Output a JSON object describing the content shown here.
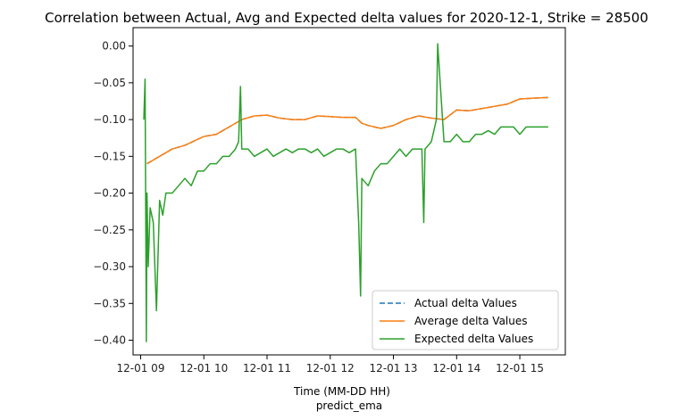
{
  "chart_data": {
    "type": "line",
    "title": "Correlation between Actual, Avg and Expected delta values for 2020-12-1, Strike = 28500",
    "xlabel": "Time (MM-DD HH)",
    "sublabel": "predict_ema",
    "ylabel": "",
    "xlim_hours": [
      8.88,
      15.72
    ],
    "ylim": [
      -0.42,
      0.025
    ],
    "x_ticks": [
      {
        "value": 9,
        "label": "12-01 09"
      },
      {
        "value": 10,
        "label": "12-01 10"
      },
      {
        "value": 11,
        "label": "12-01 11"
      },
      {
        "value": 12,
        "label": "12-01 12"
      },
      {
        "value": 13,
        "label": "12-01 13"
      },
      {
        "value": 14,
        "label": "12-01 14"
      },
      {
        "value": 15,
        "label": "12-01 15"
      }
    ],
    "y_ticks": [
      {
        "value": 0.0,
        "label": "0.00"
      },
      {
        "value": -0.05,
        "label": "−0.05"
      },
      {
        "value": -0.1,
        "label": "−0.10"
      },
      {
        "value": -0.15,
        "label": "−0.15"
      },
      {
        "value": -0.2,
        "label": "−0.20"
      },
      {
        "value": -0.25,
        "label": "−0.25"
      },
      {
        "value": -0.3,
        "label": "−0.30"
      },
      {
        "value": -0.35,
        "label": "−0.35"
      },
      {
        "value": -0.4,
        "label": "−0.40"
      }
    ],
    "grid": false,
    "legend_position": "lower-right",
    "series": [
      {
        "name": "Actual delta Values",
        "color": "#1f77b4",
        "dash": "dashed",
        "x": [
          9.1,
          9.2,
          9.3,
          9.5,
          9.7,
          9.9,
          10.0,
          10.2,
          10.4,
          10.6,
          10.8,
          11.0,
          11.2,
          11.4,
          11.6,
          11.8,
          12.0,
          12.2,
          12.4,
          12.5,
          12.6,
          12.8,
          13.0,
          13.2,
          13.4,
          13.6,
          13.8,
          14.0,
          14.2,
          14.4,
          14.6,
          14.8,
          15.0,
          15.2,
          15.45
        ],
        "y": [
          -0.16,
          -0.155,
          -0.15,
          -0.14,
          -0.135,
          -0.127,
          -0.123,
          -0.12,
          -0.11,
          -0.1,
          -0.095,
          -0.094,
          -0.098,
          -0.1,
          -0.1,
          -0.095,
          -0.096,
          -0.097,
          -0.097,
          -0.105,
          -0.108,
          -0.112,
          -0.108,
          -0.1,
          -0.095,
          -0.098,
          -0.1,
          -0.087,
          -0.088,
          -0.085,
          -0.082,
          -0.079,
          -0.072,
          -0.071,
          -0.07
        ]
      },
      {
        "name": "Average delta Values",
        "color": "#ff7f0e",
        "dash": "solid",
        "x": [
          9.1,
          9.2,
          9.3,
          9.5,
          9.7,
          9.9,
          10.0,
          10.2,
          10.4,
          10.6,
          10.8,
          11.0,
          11.2,
          11.4,
          11.6,
          11.8,
          12.0,
          12.2,
          12.4,
          12.5,
          12.6,
          12.8,
          13.0,
          13.2,
          13.4,
          13.6,
          13.8,
          14.0,
          14.2,
          14.4,
          14.6,
          14.8,
          15.0,
          15.2,
          15.45
        ],
        "y": [
          -0.16,
          -0.155,
          -0.15,
          -0.14,
          -0.135,
          -0.127,
          -0.123,
          -0.12,
          -0.11,
          -0.1,
          -0.095,
          -0.094,
          -0.098,
          -0.1,
          -0.1,
          -0.095,
          -0.096,
          -0.097,
          -0.097,
          -0.105,
          -0.108,
          -0.112,
          -0.108,
          -0.1,
          -0.095,
          -0.098,
          -0.1,
          -0.087,
          -0.088,
          -0.085,
          -0.082,
          -0.079,
          -0.072,
          -0.071,
          -0.07
        ]
      },
      {
        "name": "Expected delta Values",
        "color": "#2ca02c",
        "dash": "solid",
        "x": [
          9.05,
          9.07,
          9.09,
          9.1,
          9.12,
          9.15,
          9.2,
          9.25,
          9.3,
          9.35,
          9.4,
          9.5,
          9.6,
          9.7,
          9.8,
          9.9,
          10.0,
          10.1,
          10.2,
          10.3,
          10.4,
          10.5,
          10.55,
          10.58,
          10.6,
          10.7,
          10.8,
          10.9,
          11.0,
          11.1,
          11.2,
          11.3,
          11.4,
          11.5,
          11.6,
          11.7,
          11.8,
          11.9,
          12.0,
          12.1,
          12.2,
          12.3,
          12.4,
          12.45,
          12.48,
          12.5,
          12.6,
          12.7,
          12.8,
          12.9,
          13.0,
          13.1,
          13.2,
          13.3,
          13.45,
          13.48,
          13.5,
          13.6,
          13.68,
          13.7,
          13.8,
          13.9,
          14.0,
          14.1,
          14.2,
          14.3,
          14.4,
          14.5,
          14.6,
          14.7,
          14.8,
          14.9,
          15.0,
          15.1,
          15.2,
          15.3,
          15.4,
          15.45
        ],
        "y": [
          -0.1,
          -0.045,
          -0.402,
          -0.2,
          -0.3,
          -0.22,
          -0.24,
          -0.36,
          -0.21,
          -0.23,
          -0.2,
          -0.2,
          -0.19,
          -0.18,
          -0.19,
          -0.17,
          -0.17,
          -0.16,
          -0.16,
          -0.15,
          -0.15,
          -0.14,
          -0.13,
          -0.055,
          -0.14,
          -0.14,
          -0.15,
          -0.145,
          -0.14,
          -0.15,
          -0.145,
          -0.14,
          -0.145,
          -0.14,
          -0.14,
          -0.145,
          -0.14,
          -0.15,
          -0.145,
          -0.14,
          -0.14,
          -0.145,
          -0.14,
          -0.24,
          -0.34,
          -0.18,
          -0.19,
          -0.17,
          -0.16,
          -0.16,
          -0.15,
          -0.14,
          -0.15,
          -0.14,
          -0.14,
          -0.24,
          -0.14,
          -0.13,
          -0.1,
          0.003,
          -0.13,
          -0.13,
          -0.12,
          -0.13,
          -0.13,
          -0.12,
          -0.12,
          -0.115,
          -0.12,
          -0.11,
          -0.11,
          -0.11,
          -0.12,
          -0.11,
          -0.11,
          -0.11,
          -0.11,
          -0.11
        ]
      }
    ]
  }
}
